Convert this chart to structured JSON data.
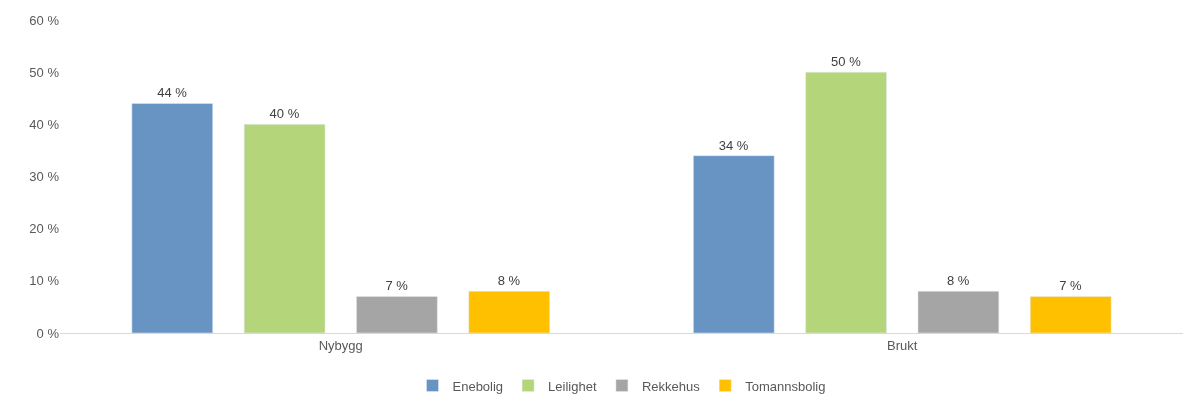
{
  "chart_data": {
    "type": "bar",
    "categories": [
      "Nybygg",
      "Brukt"
    ],
    "series": [
      {
        "name": "Enebolig",
        "color": "#6894c4",
        "values": [
          44,
          34
        ],
        "value_labels": [
          "44 %",
          "34 %"
        ]
      },
      {
        "name": "Leilighet",
        "color": "#b5d57a",
        "values": [
          40,
          50
        ],
        "value_labels": [
          "40 %",
          "50 %"
        ]
      },
      {
        "name": "Rekkehus",
        "color": "#a5a5a5",
        "values": [
          7,
          8
        ],
        "value_labels": [
          "7 %",
          "8 %"
        ]
      },
      {
        "name": "Tomannsbolig",
        "color": "#ffc000",
        "values": [
          8,
          7
        ],
        "value_labels": [
          "8 %",
          "7 %"
        ]
      }
    ],
    "ylim": [
      0,
      60
    ],
    "yticks": [
      {
        "value": 0,
        "label": "0 %"
      },
      {
        "value": 10,
        "label": "10 %"
      },
      {
        "value": 20,
        "label": "20 %"
      },
      {
        "value": 30,
        "label": "30 %"
      },
      {
        "value": 40,
        "label": "40 %"
      },
      {
        "value": 50,
        "label": "50 %"
      },
      {
        "value": 60,
        "label": "60 %"
      }
    ],
    "grid": false,
    "legend": "bottom"
  }
}
